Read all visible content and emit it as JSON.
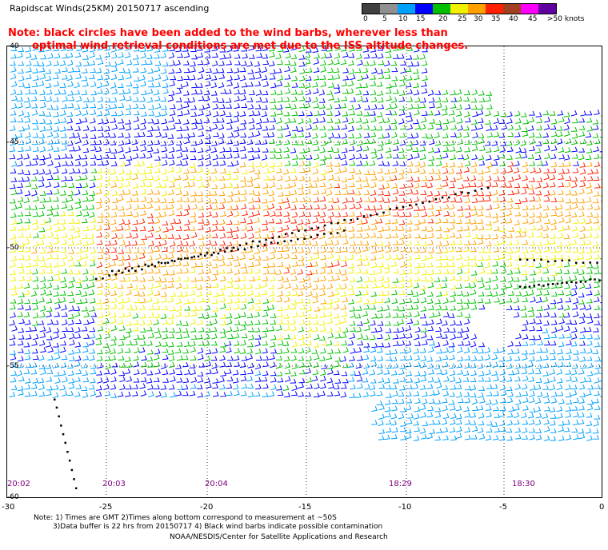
{
  "header": {
    "title": "Rapidscat Winds(25KM) 20150717 ascending"
  },
  "note": {
    "line1": "Note: black circles have been added to the wind barbs, wherever less than",
    "line2": "optimal wind retrieval conditions are met due to the ISS altitude changes."
  },
  "colorbar": {
    "unit_label": ">50 knots",
    "ticks": [
      "0",
      "5",
      "10",
      "15",
      "20",
      "25",
      "30",
      "35",
      "40",
      "45"
    ],
    "colors": [
      "#404040",
      "#909090",
      "#00a0ff",
      "#0000ff",
      "#00c000",
      "#f0f000",
      "#ffa000",
      "#ff2000",
      "#a04020",
      "#ff00ff",
      "#6000a0"
    ]
  },
  "map": {
    "lon_ticks": [
      "-30",
      "-25",
      "-20",
      "-15",
      "-10",
      "-5",
      "0"
    ],
    "lat_ticks": [
      "-40",
      "-45",
      "-50",
      "-55",
      "-60"
    ],
    "times": [
      {
        "label": "20:02"
      },
      {
        "label": "20:03"
      },
      {
        "label": "20:04"
      },
      {
        "label": "18:29"
      },
      {
        "label": "18:30"
      }
    ]
  },
  "footer": {
    "line1": "Note: 1) Times are GMT 2)Times along bottom correspond to measurement at ~50S",
    "line2": "3)Data buffer is 22 hrs from 20150717 4) Black wind barbs indicate possible contamination",
    "credit": "NOAA/NESDIS/Center for Satellite Applications and Research"
  }
}
